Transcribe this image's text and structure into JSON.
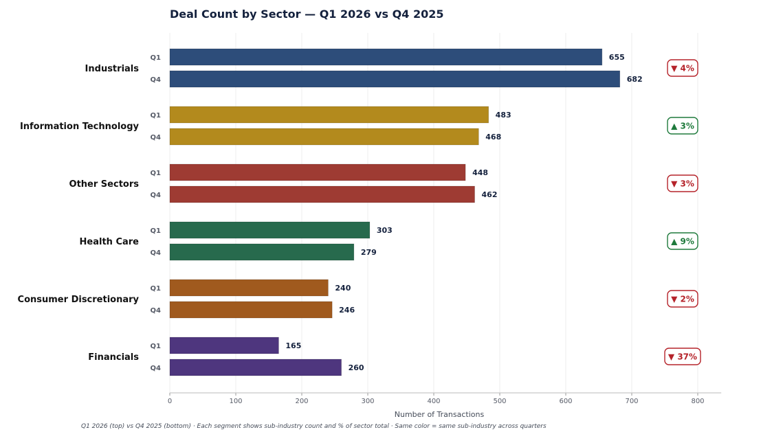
{
  "chart_data": {
    "type": "bar",
    "orientation": "horizontal",
    "title": "Deal Count by Sector — Q1 2026 vs Q4 2025",
    "xlabel": "Number of Transactions",
    "footnote": "Q1 2026 (top) vs Q4 2025 (bottom)  ·  Each segment shows sub-industry count and % of sector total  ·  Same color = same sub-industry across quarters",
    "xlim": [
      0,
      820
    ],
    "xticks": [
      0,
      100,
      200,
      300,
      400,
      500,
      600,
      700,
      800
    ],
    "grid": true,
    "quarters": [
      "Q1",
      "Q4"
    ],
    "sectors": [
      {
        "name": "Industrials",
        "color": "#2d4d7a",
        "q1": 655,
        "q4": 682,
        "change": "▼ 4%",
        "direction": "down"
      },
      {
        "name": "Information Technology",
        "color": "#b38a1d",
        "q1": 483,
        "q4": 468,
        "change": "▲ 3%",
        "direction": "up"
      },
      {
        "name": "Other Sectors",
        "color": "#9e3b33",
        "q1": 448,
        "q4": 462,
        "change": "▼ 3%",
        "direction": "down"
      },
      {
        "name": "Health Care",
        "color": "#276a4d",
        "q1": 303,
        "q4": 279,
        "change": "▲ 9%",
        "direction": "up"
      },
      {
        "name": "Consumer Discretionary",
        "color": "#a05a1e",
        "q1": 240,
        "q4": 246,
        "change": "▼ 2%",
        "direction": "down"
      },
      {
        "name": "Financials",
        "color": "#4e367e",
        "q1": 165,
        "q4": 260,
        "change": "▼ 37%",
        "direction": "down"
      }
    ],
    "badge_colors": {
      "down": "#b5232a",
      "up": "#1f7a3c"
    }
  }
}
